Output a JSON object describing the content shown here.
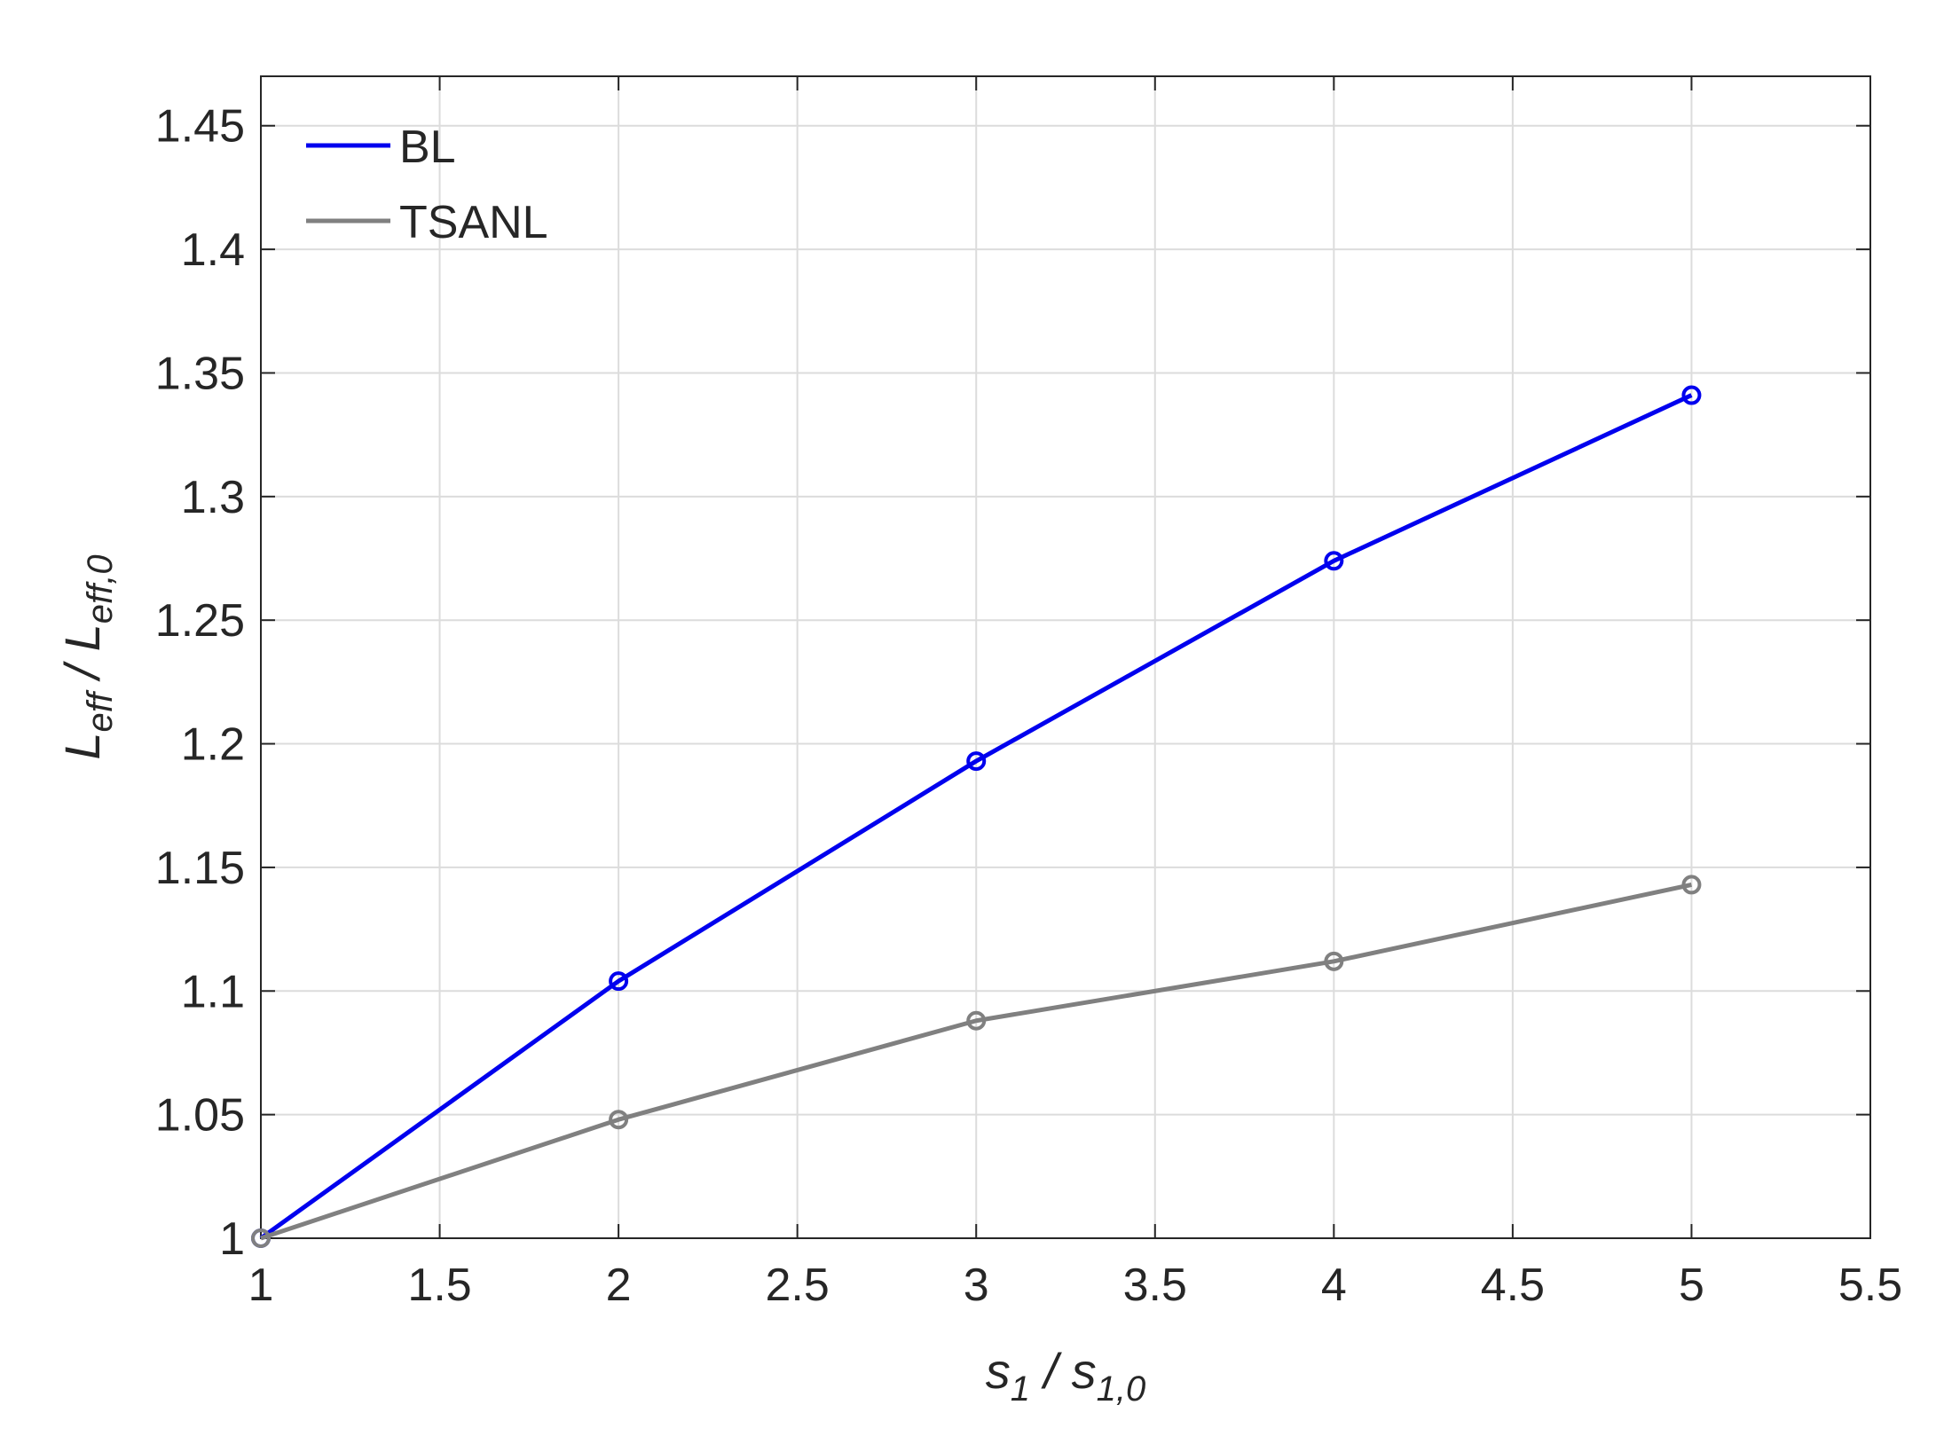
{
  "chart_data": {
    "type": "line",
    "title": "",
    "xlabel": {
      "main": "s",
      "sub": "1",
      "sep": " / ",
      "main2": "s",
      "sub2": "1,0"
    },
    "ylabel": {
      "main": "L",
      "sub": "eff",
      "sep": " / ",
      "main2": "L",
      "sub2": "eff,0"
    },
    "xlim": [
      1,
      5.5
    ],
    "ylim": [
      1,
      1.47
    ],
    "xticks": [
      1,
      1.5,
      2,
      2.5,
      3,
      3.5,
      4,
      4.5,
      5,
      5.5
    ],
    "xtick_labels": [
      "1",
      "1.5",
      "2",
      "2.5",
      "3",
      "3.5",
      "4",
      "4.5",
      "5",
      "5.5"
    ],
    "yticks": [
      1,
      1.05,
      1.1,
      1.15,
      1.2,
      1.25,
      1.3,
      1.35,
      1.4,
      1.45
    ],
    "ytick_labels": [
      "1",
      "1.05",
      "1.1",
      "1.15",
      "1.2",
      "1.25",
      "1.3",
      "1.35",
      "1.4",
      "1.45"
    ],
    "grid": true,
    "legend_position": "top-left",
    "series": [
      {
        "name": "BL",
        "color": "#0000ee",
        "marker": "circle",
        "x": [
          1,
          2,
          3,
          4,
          5
        ],
        "y": [
          1.0,
          1.104,
          1.193,
          1.274,
          1.341
        ]
      },
      {
        "name": "TSANL",
        "color": "#808080",
        "marker": "circle",
        "x": [
          1,
          2,
          3,
          4,
          5
        ],
        "y": [
          1.0,
          1.048,
          1.088,
          1.112,
          1.143
        ]
      }
    ]
  }
}
